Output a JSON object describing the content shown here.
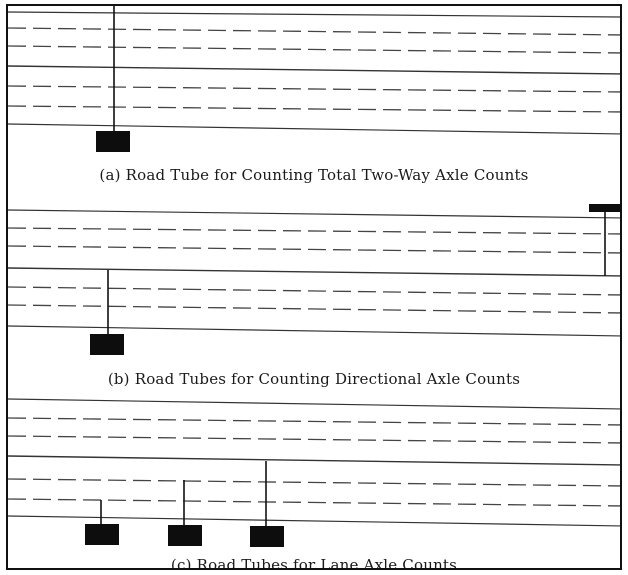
{
  "panels": {
    "a": {
      "caption": "(a) Road Tube for Counting Total Two-Way Axle Counts"
    },
    "b": {
      "caption": "(b) Road Tubes for Counting Directional Axle Counts"
    },
    "c": {
      "caption": "(c) Road Tubes for Lane Axle Counts"
    }
  },
  "colors": {
    "ink": "#1a1a1a",
    "road_edge": "#333333",
    "lane_dash": "#444444",
    "counter_box": "#0d0d0d",
    "background": "#ffffff"
  }
}
